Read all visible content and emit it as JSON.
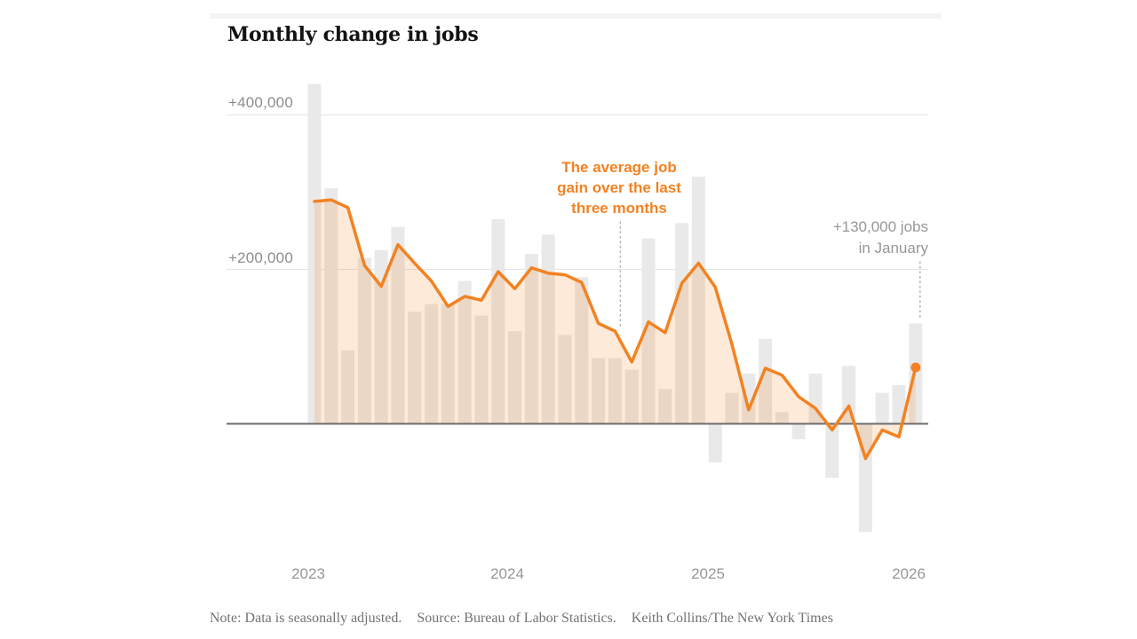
{
  "page": {
    "title": "Monthly change in jobs",
    "note": "Note: Data is seasonally adjusted.",
    "source": "Source: Bureau of Labor Statistics.",
    "credit": "Keith Collins/The New York Times"
  },
  "axis": {
    "y_ticks": [
      "+400,000",
      "+200,000"
    ],
    "x_ticks": [
      "2023",
      "2024",
      "2025",
      "2026"
    ]
  },
  "annotations": {
    "avg_line1": "The average job",
    "avg_line2": "gain over the last",
    "avg_line3": "three months",
    "latest_line1": "+130,000 jobs",
    "latest_line2": "in January"
  },
  "colors": {
    "accent_orange": "#f28222",
    "area_fill": "rgba(242,130,32,0.17)",
    "bar_gray": "#e9e9e9",
    "gridline": "#e3e3e3",
    "zero_line": "#6e6e6e",
    "leader_dots": "#b3b3b3",
    "tick_text": "#979797"
  },
  "chart_data": {
    "type": "bar+line",
    "title": "Monthly change in jobs",
    "ylim": [
      -160000,
      440000
    ],
    "y_gridlines": [
      400000,
      200000
    ],
    "x_year_tick_month_indexes": [
      0,
      12,
      24,
      36
    ],
    "months": [
      "Jan 2023",
      "Feb 2023",
      "Mar 2023",
      "Apr 2023",
      "May 2023",
      "Jun 2023",
      "Jul 2023",
      "Aug 2023",
      "Sep 2023",
      "Oct 2023",
      "Nov 2023",
      "Dec 2023",
      "Jan 2024",
      "Feb 2024",
      "Mar 2024",
      "Apr 2024",
      "May 2024",
      "Jun 2024",
      "Jul 2024",
      "Aug 2024",
      "Sep 2024",
      "Oct 2024",
      "Nov 2024",
      "Dec 2024",
      "Jan 2025",
      "Feb 2025",
      "Mar 2025",
      "Apr 2025",
      "May 2025",
      "Jun 2025",
      "Jul 2025",
      "Aug 2025",
      "Sep 2025",
      "Oct 2025",
      "Nov 2025",
      "Dec 2025",
      "Jan 2026"
    ],
    "series": [
      {
        "name": "Monthly change in jobs (bars)",
        "values": [
          440000,
          305000,
          95000,
          215000,
          225000,
          255000,
          145000,
          155000,
          155000,
          185000,
          140000,
          265000,
          120000,
          220000,
          245000,
          115000,
          190000,
          85000,
          85000,
          70000,
          240000,
          45000,
          260000,
          320000,
          -50000,
          40000,
          65000,
          110000,
          15000,
          -20000,
          65000,
          -70000,
          75000,
          -140000,
          40000,
          50000,
          130000
        ]
      },
      {
        "name": "Average job gain over the last three months (line)",
        "values": [
          288000,
          290000,
          280000,
          205000,
          178000,
          232000,
          208000,
          185000,
          152000,
          165000,
          160000,
          197000,
          175000,
          202000,
          195000,
          193000,
          183000,
          130000,
          120000,
          80000,
          132000,
          118000,
          182000,
          208000,
          177000,
          103000,
          18000,
          72000,
          63000,
          35000,
          20000,
          -8000,
          23000,
          -45000,
          -8000,
          -17000,
          73000
        ]
      }
    ],
    "annotation_targets": {
      "avg_label_month_index": 18,
      "latest_month_index": 36,
      "latest_bar_value": 130000
    }
  }
}
